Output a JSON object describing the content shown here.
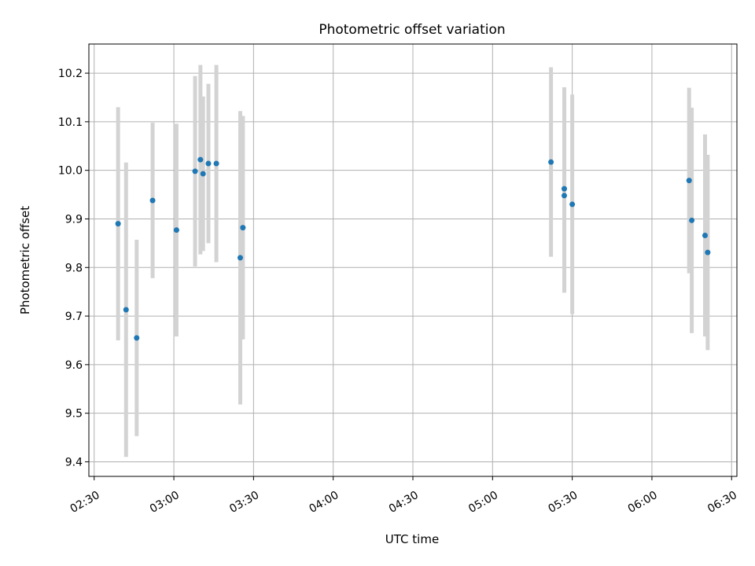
{
  "chart_data": {
    "type": "scatter",
    "title": "Photometric offset variation",
    "xlabel": "UTC time",
    "ylabel": "Photometric offset",
    "xlim": [
      "02:28",
      "06:32"
    ],
    "ylim": [
      9.37,
      10.26
    ],
    "x_ticks": [
      "02:30",
      "03:00",
      "03:30",
      "04:00",
      "04:30",
      "05:00",
      "05:30",
      "06:00",
      "06:30"
    ],
    "y_ticks": [
      "9.4",
      "9.5",
      "9.6",
      "9.7",
      "9.8",
      "9.9",
      "10.0",
      "10.1",
      "10.2"
    ],
    "grid": true,
    "point_color": "#1f77b4",
    "errorbar_color": "#d3d3d3",
    "points": [
      {
        "x": "02:39",
        "y": 9.89,
        "lo": 9.65,
        "hi": 10.13
      },
      {
        "x": "02:42",
        "y": 9.713,
        "lo": 9.41,
        "hi": 10.016
      },
      {
        "x": "02:46",
        "y": 9.655,
        "lo": 9.453,
        "hi": 9.857
      },
      {
        "x": "02:52",
        "y": 9.938,
        "lo": 9.778,
        "hi": 10.098
      },
      {
        "x": "03:01",
        "y": 9.877,
        "lo": 9.658,
        "hi": 10.096
      },
      {
        "x": "03:08",
        "y": 9.998,
        "lo": 9.802,
        "hi": 10.194
      },
      {
        "x": "03:10",
        "y": 10.022,
        "lo": 9.827,
        "hi": 10.217
      },
      {
        "x": "03:11",
        "y": 9.993,
        "lo": 9.834,
        "hi": 10.152
      },
      {
        "x": "03:13",
        "y": 10.014,
        "lo": 9.85,
        "hi": 10.178
      },
      {
        "x": "03:16",
        "y": 10.014,
        "lo": 9.811,
        "hi": 10.217
      },
      {
        "x": "03:25",
        "y": 9.82,
        "lo": 9.518,
        "hi": 10.122
      },
      {
        "x": "03:26",
        "y": 9.882,
        "lo": 9.652,
        "hi": 10.112
      },
      {
        "x": "05:22",
        "y": 10.017,
        "lo": 9.822,
        "hi": 10.212
      },
      {
        "x": "05:27",
        "y": 9.962,
        "lo": 9.753,
        "hi": 10.171
      },
      {
        "x": "05:27",
        "y": 9.948,
        "lo": 9.748,
        "hi": 10.148
      },
      {
        "x": "05:30",
        "y": 9.93,
        "lo": 9.704,
        "hi": 10.156
      },
      {
        "x": "06:14",
        "y": 9.979,
        "lo": 9.788,
        "hi": 10.17
      },
      {
        "x": "06:15",
        "y": 9.897,
        "lo": 9.665,
        "hi": 10.129
      },
      {
        "x": "06:20",
        "y": 9.866,
        "lo": 9.658,
        "hi": 10.074
      },
      {
        "x": "06:21",
        "y": 9.831,
        "lo": 9.63,
        "hi": 10.032
      }
    ]
  }
}
